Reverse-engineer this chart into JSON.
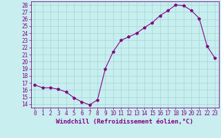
{
  "x": [
    0,
    1,
    2,
    3,
    4,
    5,
    6,
    7,
    8,
    9,
    10,
    11,
    12,
    13,
    14,
    15,
    16,
    17,
    18,
    19,
    20,
    21,
    22,
    23
  ],
  "y": [
    16.7,
    16.3,
    16.3,
    16.1,
    15.7,
    14.9,
    14.3,
    13.9,
    14.6,
    19.0,
    21.4,
    23.0,
    23.5,
    24.0,
    24.8,
    25.5,
    26.5,
    27.2,
    28.0,
    27.9,
    27.2,
    26.1,
    22.2,
    20.5
  ],
  "line_color": "#800080",
  "marker": "*",
  "marker_size": 3,
  "bg_color": "#c8eef0",
  "grid_color": "#a0d8d0",
  "xlabel": "Windchill (Refroidissement éolien,°C)",
  "xlim": [
    -0.5,
    23.5
  ],
  "ylim": [
    13.5,
    28.5
  ],
  "yticks": [
    14,
    15,
    16,
    17,
    18,
    19,
    20,
    21,
    22,
    23,
    24,
    25,
    26,
    27,
    28
  ],
  "xticks": [
    0,
    1,
    2,
    3,
    4,
    5,
    6,
    7,
    8,
    9,
    10,
    11,
    12,
    13,
    14,
    15,
    16,
    17,
    18,
    19,
    20,
    21,
    22,
    23
  ],
  "tick_fontsize": 5.5,
  "xlabel_fontsize": 6.5
}
